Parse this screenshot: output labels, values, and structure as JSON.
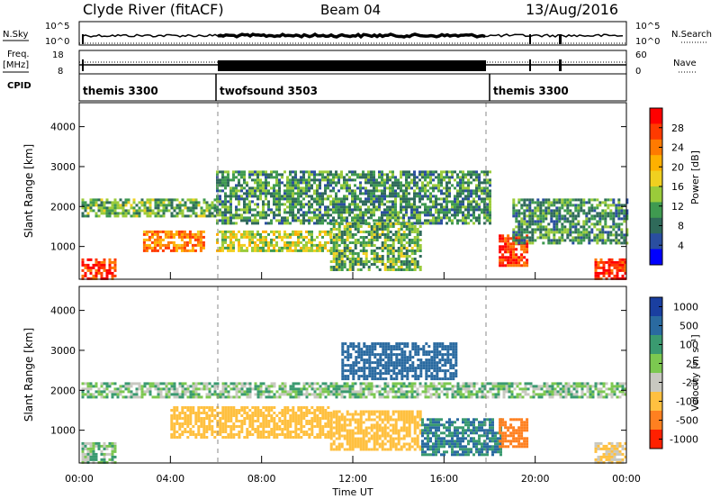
{
  "header": {
    "station": "Clyde River (fitACF)",
    "beam": "Beam 04",
    "date": "13/Aug/2016"
  },
  "top_panels": {
    "left_labels": {
      "nsky": "N.Sky",
      "freq_line1": "Freq.",
      "freq_line2": "[MHz]",
      "cpid": "CPID"
    },
    "right_labels": {
      "nsearch": "N.Search",
      "nave": "Nave"
    },
    "nsky_ticks_left": [
      "10^5",
      "10^0"
    ],
    "nsearch_ticks_right": [
      "10^5",
      "10^0"
    ],
    "freq_ticks_left": [
      "18",
      "8"
    ],
    "nave_ticks_right": [
      "60",
      "0"
    ],
    "cpid_segments": [
      {
        "label": "themis 3300",
        "start_h": 0,
        "end_h": 6
      },
      {
        "label": "twofsound 3503",
        "start_h": 6,
        "end_h": 18
      },
      {
        "label": "themis 3300",
        "start_h": 18,
        "end_h": 24
      }
    ]
  },
  "axes": {
    "ylabel": "Slant Range [km]",
    "xlabel": "Time UT",
    "x_ticks": [
      "00:00",
      "04:00",
      "08:00",
      "12:00",
      "16:00",
      "20:00",
      "00:00"
    ],
    "y_ticks": [
      "1000",
      "2000",
      "3000",
      "4000"
    ]
  },
  "colorbars": {
    "power": {
      "label": "Power [dB]",
      "ticks": [
        "28",
        "24",
        "20",
        "16",
        "12",
        "8",
        "4"
      ],
      "colors": [
        "#ff0000",
        "#ff3a00",
        "#ff7a00",
        "#ffb000",
        "#f0d020",
        "#9acb3a",
        "#3f9a50",
        "#2f6a5a",
        "#2a4ea0",
        "#0000ff"
      ]
    },
    "velocity": {
      "label": "Velocity [m s⁻¹]",
      "ticks": [
        "1000",
        "500",
        "100",
        "25",
        "-25",
        "-100",
        "-500",
        "-1000"
      ],
      "colors": [
        "#1a3fa0",
        "#2a6aa0",
        "#3a9a70",
        "#7cc850",
        "#c8c8c0",
        "#ffc040",
        "#ff8020",
        "#ff2000"
      ]
    }
  },
  "chart_data": [
    {
      "type": "heatmap",
      "title": "Power",
      "xlabel": "Time UT",
      "ylabel": "Slant Range [km]",
      "xlim": [
        0,
        24
      ],
      "ylim": [
        180,
        4600
      ],
      "colorbar_label": "Power [dB]",
      "colorbar_range": [
        0,
        32
      ],
      "regions": [
        {
          "t0": 0.1,
          "t1": 1.6,
          "r0": 200,
          "r1": 700,
          "value": 28
        },
        {
          "t0": 0.1,
          "t1": 6.0,
          "r0": 1750,
          "r1": 2200,
          "value": 12
        },
        {
          "t0": 2.8,
          "t1": 5.5,
          "r0": 900,
          "r1": 1400,
          "value": 24
        },
        {
          "t0": 6.0,
          "t1": 11.0,
          "r0": 900,
          "r1": 1400,
          "value": 16
        },
        {
          "t0": 6.0,
          "t1": 18.0,
          "r0": 1600,
          "r1": 2900,
          "value": 10
        },
        {
          "t0": 11.0,
          "t1": 15.0,
          "r0": 400,
          "r1": 1600,
          "value": 12
        },
        {
          "t0": 18.4,
          "t1": 19.6,
          "r0": 500,
          "r1": 1300,
          "value": 28
        },
        {
          "t0": 19.0,
          "t1": 24.0,
          "r0": 1100,
          "r1": 2200,
          "value": 10
        },
        {
          "t0": 22.6,
          "t1": 24.0,
          "r0": 200,
          "r1": 700,
          "value": 28
        }
      ]
    },
    {
      "type": "heatmap",
      "title": "Velocity",
      "xlabel": "Time UT",
      "ylabel": "Slant Range [km]",
      "xlim": [
        0,
        24
      ],
      "ylim": [
        180,
        4600
      ],
      "colorbar_label": "Velocity [m s⁻¹]",
      "colorbar_range": [
        -1000,
        1000
      ],
      "regions": [
        {
          "t0": 0.1,
          "t1": 24.0,
          "r0": 1800,
          "r1": 2200,
          "value": 0
        },
        {
          "t0": 4.0,
          "t1": 11.0,
          "r0": 800,
          "r1": 1600,
          "value": -300
        },
        {
          "t0": 11.0,
          "t1": 15.0,
          "r0": 500,
          "r1": 1500,
          "value": -200
        },
        {
          "t0": 15.0,
          "t1": 18.5,
          "r0": 400,
          "r1": 1300,
          "value": 100
        },
        {
          "t0": 18.4,
          "t1": 19.6,
          "r0": 600,
          "r1": 1300,
          "value": -900
        },
        {
          "t0": 11.5,
          "t1": 16.5,
          "r0": 2300,
          "r1": 3200,
          "value": 300
        },
        {
          "t0": 0.1,
          "t1": 1.6,
          "r0": 200,
          "r1": 700,
          "value": 0
        },
        {
          "t0": 22.6,
          "t1": 24.0,
          "r0": 200,
          "r1": 700,
          "value": -100
        }
      ]
    }
  ]
}
